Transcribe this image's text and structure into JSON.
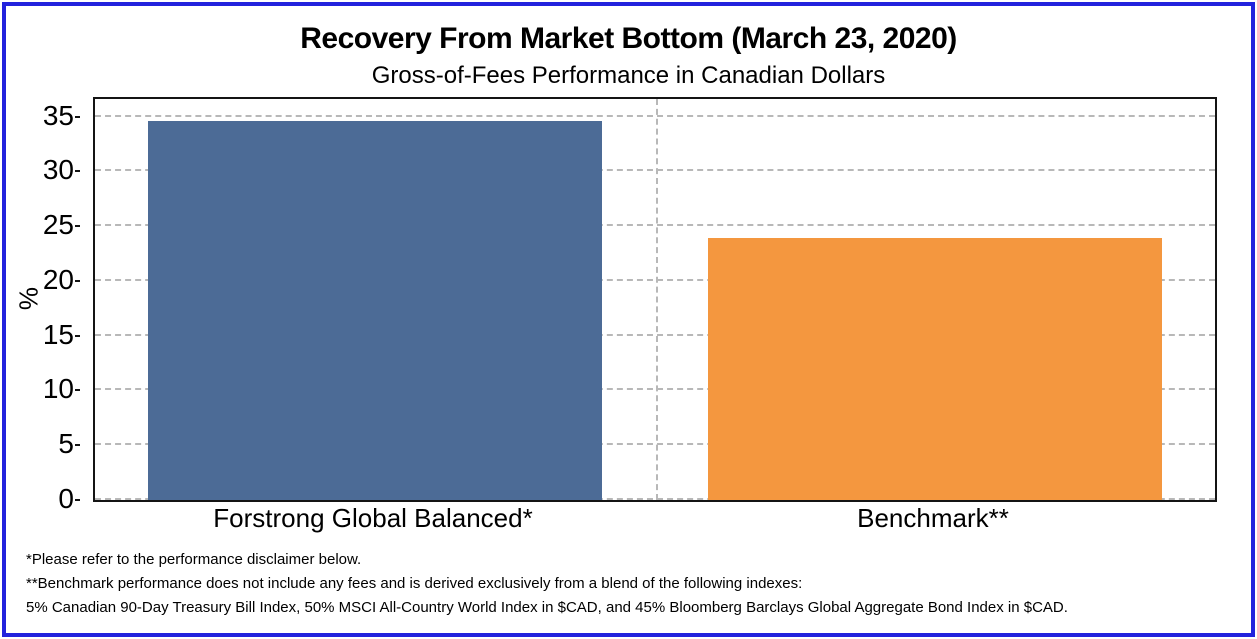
{
  "page": {
    "border_color": "#2222dd",
    "background_color": "#ffffff"
  },
  "header": {
    "title": "Recovery From Market Bottom (March 23, 2020)",
    "subtitle": "Gross-of-Fees Performance in Canadian Dollars"
  },
  "chart_data": {
    "type": "bar",
    "title": "Recovery From Market Bottom (March 23, 2020)",
    "subtitle": "Gross-of-Fees Performance in Canadian Dollars",
    "categories": [
      "Forstrong Global Balanced*",
      "Benchmark**"
    ],
    "values": [
      34.6,
      23.9
    ],
    "bar_colors": [
      "#4c6b96",
      "#f4973f"
    ],
    "xlabel": "",
    "ylabel": "%",
    "ylim": [
      0,
      36.6
    ],
    "yticks": [
      0,
      5,
      10,
      15,
      20,
      25,
      30,
      35
    ],
    "grid": "dashed horizontal gridlines at each y tick plus dashed vertical category separator",
    "gridline_color": "#b8b8b8",
    "legend": "none"
  },
  "footnotes": {
    "line1": "*Please refer to the performance disclaimer below.",
    "line2": "**Benchmark performance does not include any fees and is derived exclusively from a blend of the following indexes:",
    "line3": "5% Canadian 90-Day Treasury Bill Index, 50% MSCI All-Country World Index in $CAD, and 45% Bloomberg Barclays Global Aggregate Bond Index in $CAD."
  }
}
